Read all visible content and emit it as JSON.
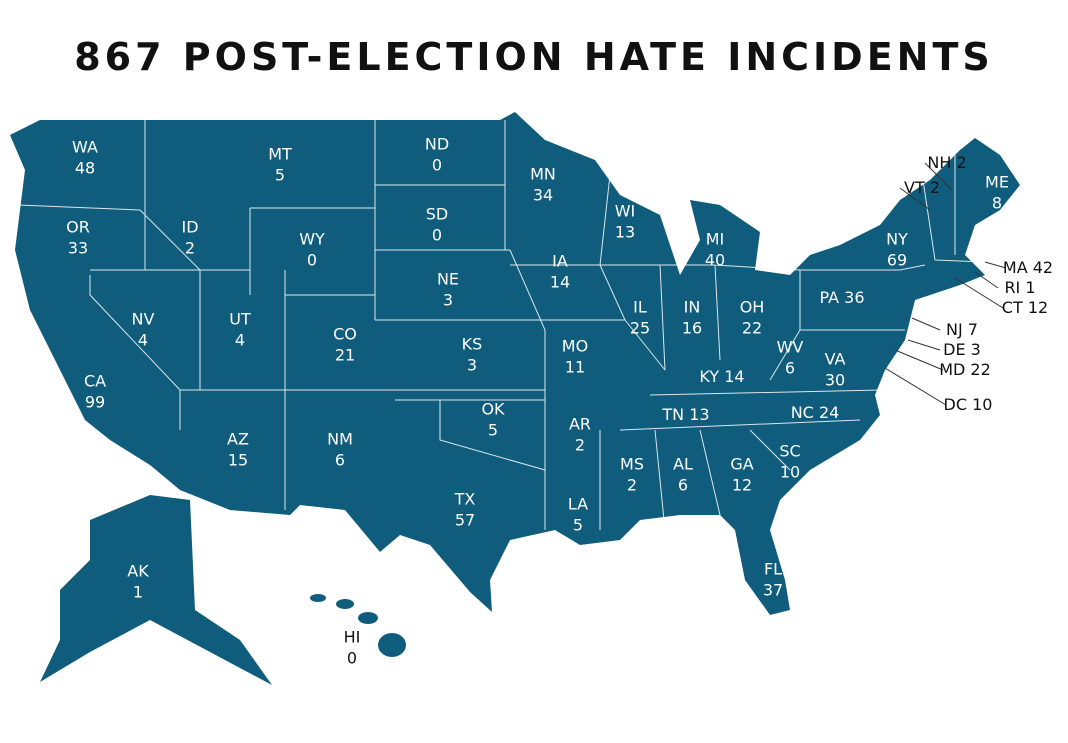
{
  "title": "867 POST-ELECTION HATE INCIDENTS",
  "states": [
    {
      "abbr": "WA",
      "count": 48
    },
    {
      "abbr": "MT",
      "count": 5
    },
    {
      "abbr": "ND",
      "count": 0
    },
    {
      "abbr": "MN",
      "count": 34
    },
    {
      "abbr": "WI",
      "count": 13
    },
    {
      "abbr": "MI",
      "count": 40
    },
    {
      "abbr": "NY",
      "count": 69
    },
    {
      "abbr": "ME",
      "count": 8
    },
    {
      "abbr": "NH",
      "count": 2
    },
    {
      "abbr": "VT",
      "count": 2
    },
    {
      "abbr": "MA",
      "count": 42
    },
    {
      "abbr": "RI",
      "count": 1
    },
    {
      "abbr": "CT",
      "count": 12
    },
    {
      "abbr": "OR",
      "count": 33
    },
    {
      "abbr": "ID",
      "count": 2
    },
    {
      "abbr": "WY",
      "count": 0
    },
    {
      "abbr": "SD",
      "count": 0
    },
    {
      "abbr": "IA",
      "count": 14
    },
    {
      "abbr": "NE",
      "count": 3
    },
    {
      "abbr": "NV",
      "count": 4
    },
    {
      "abbr": "UT",
      "count": 4
    },
    {
      "abbr": "CO",
      "count": 21
    },
    {
      "abbr": "KS",
      "count": 3
    },
    {
      "abbr": "MO",
      "count": 11
    },
    {
      "abbr": "IL",
      "count": 25
    },
    {
      "abbr": "IN",
      "count": 16
    },
    {
      "abbr": "OH",
      "count": 22
    },
    {
      "abbr": "PA",
      "count": 36
    },
    {
      "abbr": "NJ",
      "count": 7
    },
    {
      "abbr": "DE",
      "count": 3
    },
    {
      "abbr": "MD",
      "count": 22
    },
    {
      "abbr": "DC",
      "count": 10
    },
    {
      "abbr": "WV",
      "count": 6
    },
    {
      "abbr": "VA",
      "count": 30
    },
    {
      "abbr": "KY",
      "count": 14
    },
    {
      "abbr": "CA",
      "count": 99
    },
    {
      "abbr": "AZ",
      "count": 15
    },
    {
      "abbr": "NM",
      "count": 6
    },
    {
      "abbr": "OK",
      "count": 5
    },
    {
      "abbr": "AR",
      "count": 2
    },
    {
      "abbr": "TN",
      "count": 13
    },
    {
      "abbr": "NC",
      "count": 24
    },
    {
      "abbr": "SC",
      "count": 10
    },
    {
      "abbr": "MS",
      "count": 2
    },
    {
      "abbr": "AL",
      "count": 6
    },
    {
      "abbr": "GA",
      "count": 12
    },
    {
      "abbr": "LA",
      "count": 5
    },
    {
      "abbr": "TX",
      "count": 57
    },
    {
      "abbr": "FL",
      "count": 37
    },
    {
      "abbr": "AK",
      "count": 1
    },
    {
      "abbr": "HI",
      "count": 0
    }
  ]
}
